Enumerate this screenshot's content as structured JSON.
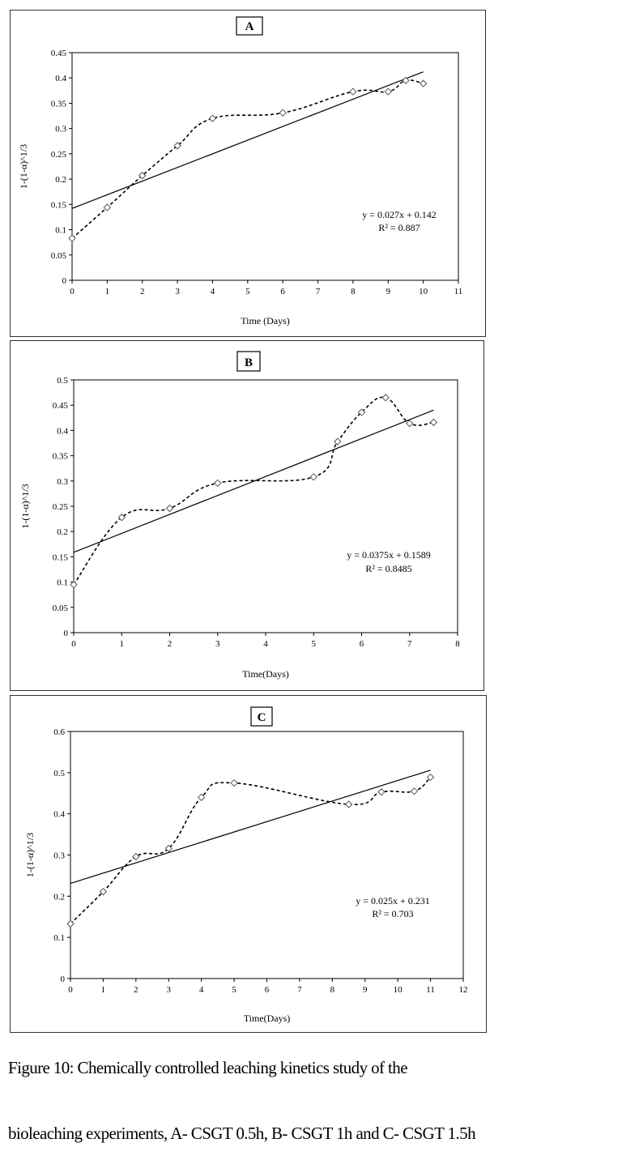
{
  "caption": {
    "line1": "Figure 10: Chemically controlled leaching kinetics study of the",
    "line2": "bioleaching experiments, A- CSGT 0.5h, B- CSGT 1h and C- CSGT 1.5h"
  },
  "colors": {
    "line": "#000000",
    "marker": "#555555",
    "frame": "#333333"
  },
  "chart_data": [
    {
      "type": "scatter",
      "title": "A",
      "xlabel": "Time (Days)",
      "ylabel": "1-(1-α)^1/3",
      "xlim": [
        0,
        11
      ],
      "ylim": [
        0,
        0.45
      ],
      "xticks": [
        0,
        1,
        2,
        3,
        4,
        5,
        6,
        7,
        8,
        9,
        10,
        11
      ],
      "yticks": [
        0,
        0.05,
        0.1,
        0.15,
        0.2,
        0.25,
        0.3,
        0.35,
        0.4,
        0.45
      ],
      "ytick_labels": [
        "0",
        "0.05",
        "0.1",
        "0.15",
        "0.2",
        "0.25",
        "0.3",
        "0.35",
        "0.4",
        "0.45"
      ],
      "grid": false,
      "series": [
        {
          "style": "dashed-smooth-diamond",
          "x": [
            0,
            1,
            2,
            3,
            4,
            6,
            8,
            9,
            9.5,
            10
          ],
          "y": [
            0.083,
            0.144,
            0.207,
            0.266,
            0.32,
            0.331,
            0.373,
            0.373,
            0.395,
            0.389
          ]
        }
      ],
      "trendline": {
        "slope": 0.027,
        "intercept": 0.142,
        "x_range": [
          0,
          10
        ]
      },
      "equation": "y = 0.027x + 0.142",
      "r2": "R² = 0.887"
    },
    {
      "type": "scatter",
      "title": "B",
      "xlabel": "Time(Days)",
      "ylabel": "1-(1-α)^1/3",
      "xlim": [
        0,
        8
      ],
      "ylim": [
        0,
        0.5
      ],
      "xticks": [
        0,
        1,
        2,
        3,
        4,
        5,
        6,
        7,
        8
      ],
      "yticks": [
        0,
        0.05,
        0.1,
        0.15,
        0.2,
        0.25,
        0.3,
        0.35,
        0.4,
        0.45,
        0.5
      ],
      "ytick_labels": [
        "0",
        "0.05",
        "0.1",
        "0.15",
        "0.2",
        "0.25",
        "0.3",
        "0.35",
        "0.4",
        "0.45",
        "0.5"
      ],
      "grid": false,
      "series": [
        {
          "style": "dashed-smooth-diamond",
          "x": [
            0,
            1,
            2,
            3,
            5,
            5.5,
            6,
            6.5,
            7,
            7.5
          ],
          "y": [
            0.095,
            0.228,
            0.246,
            0.296,
            0.308,
            0.378,
            0.436,
            0.465,
            0.414,
            0.416
          ]
        }
      ],
      "trendline": {
        "slope": 0.0375,
        "intercept": 0.1589,
        "x_range": [
          0,
          7.5
        ]
      },
      "equation": "y = 0.0375x + 0.1589",
      "r2": "R² = 0.8485"
    },
    {
      "type": "scatter",
      "title": "C",
      "xlabel": "Time(Days)",
      "ylabel": "1-(1-α)^1/3",
      "xlim": [
        0,
        12
      ],
      "ylim": [
        0,
        0.6
      ],
      "xticks": [
        0,
        1,
        2,
        3,
        4,
        5,
        6,
        7,
        8,
        9,
        10,
        11,
        12
      ],
      "yticks": [
        0,
        0.1,
        0.2,
        0.3,
        0.4,
        0.5,
        0.6
      ],
      "ytick_labels": [
        "0",
        "0.1",
        "0.2",
        "0.3",
        "0.4",
        "0.5",
        "0.6"
      ],
      "grid": false,
      "series": [
        {
          "style": "dashed-smooth-diamond",
          "x": [
            0,
            1,
            2,
            3,
            4,
            5,
            8.5,
            9.5,
            10.5,
            11
          ],
          "y": [
            0.133,
            0.211,
            0.296,
            0.316,
            0.44,
            0.475,
            0.423,
            0.453,
            0.455,
            0.489
          ]
        }
      ],
      "trendline": {
        "slope": 0.025,
        "intercept": 0.231,
        "x_range": [
          0,
          11
        ]
      },
      "equation": "y = 0.025x + 0.231",
      "r2": "R² = 0.703"
    }
  ]
}
